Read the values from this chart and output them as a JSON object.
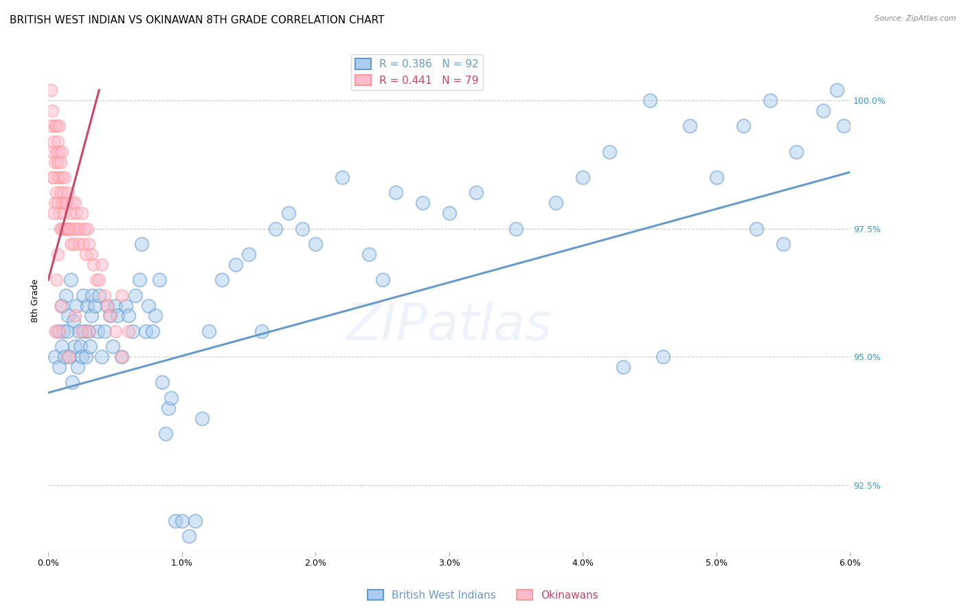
{
  "title": "BRITISH WEST INDIAN VS OKINAWAN 8TH GRADE CORRELATION CHART",
  "source": "Source: ZipAtlas.com",
  "ylabel": "8th Grade",
  "ylabel_right_ticks": [
    92.5,
    95.0,
    97.5,
    100.0
  ],
  "ylabel_right_labels": [
    "92.5%",
    "95.0%",
    "97.5%",
    "100.0%"
  ],
  "x_min": 0.0,
  "x_max": 6.0,
  "y_min": 91.2,
  "y_max": 101.0,
  "blue_R": 0.386,
  "blue_N": 92,
  "pink_R": 0.441,
  "pink_N": 79,
  "blue_color": "#6699CC",
  "pink_color": "#FF9999",
  "pink_line_color": "#CC4466",
  "blue_label": "British West Indians",
  "pink_label": "Okinawans",
  "watermark": "ZIPatlas",
  "blue_scatter_x": [
    0.05,
    0.07,
    0.08,
    0.1,
    0.1,
    0.11,
    0.12,
    0.13,
    0.14,
    0.15,
    0.16,
    0.17,
    0.18,
    0.19,
    0.2,
    0.21,
    0.22,
    0.23,
    0.24,
    0.25,
    0.26,
    0.27,
    0.28,
    0.29,
    0.3,
    0.31,
    0.32,
    0.33,
    0.35,
    0.37,
    0.38,
    0.4,
    0.42,
    0.44,
    0.46,
    0.48,
    0.5,
    0.52,
    0.55,
    0.58,
    0.6,
    0.63,
    0.65,
    0.68,
    0.7,
    0.73,
    0.75,
    0.78,
    0.8,
    0.83,
    0.85,
    0.88,
    0.9,
    0.92,
    0.95,
    1.0,
    1.05,
    1.1,
    1.15,
    1.2,
    1.3,
    1.4,
    1.5,
    1.6,
    1.7,
    1.8,
    1.9,
    2.0,
    2.2,
    2.4,
    2.5,
    2.6,
    2.8,
    3.0,
    3.2,
    3.5,
    3.8,
    4.0,
    4.2,
    4.5,
    4.8,
    5.0,
    5.2,
    5.4,
    5.6,
    5.8,
    5.9,
    5.95,
    5.5,
    5.3,
    4.6,
    4.3
  ],
  "blue_scatter_y": [
    95.0,
    95.5,
    94.8,
    95.2,
    96.0,
    95.5,
    95.0,
    96.2,
    95.5,
    95.8,
    95.0,
    96.5,
    94.5,
    95.7,
    95.2,
    96.0,
    94.8,
    95.5,
    95.2,
    95.0,
    96.2,
    95.5,
    95.0,
    96.0,
    95.5,
    95.2,
    95.8,
    96.2,
    96.0,
    95.5,
    96.2,
    95.0,
    95.5,
    96.0,
    95.8,
    95.2,
    96.0,
    95.8,
    95.0,
    96.0,
    95.8,
    95.5,
    96.2,
    96.5,
    97.2,
    95.5,
    96.0,
    95.5,
    95.8,
    96.5,
    94.5,
    93.5,
    94.0,
    94.2,
    91.8,
    91.8,
    91.5,
    91.8,
    93.8,
    95.5,
    96.5,
    96.8,
    97.0,
    95.5,
    97.5,
    97.8,
    97.5,
    97.2,
    98.5,
    97.0,
    96.5,
    98.2,
    98.0,
    97.8,
    98.2,
    97.5,
    98.0,
    98.5,
    99.0,
    100.0,
    99.5,
    98.5,
    99.5,
    100.0,
    99.0,
    99.8,
    100.2,
    99.5,
    97.2,
    97.5,
    95.0,
    94.8
  ],
  "pink_scatter_x": [
    0.02,
    0.02,
    0.03,
    0.03,
    0.04,
    0.04,
    0.05,
    0.05,
    0.05,
    0.06,
    0.06,
    0.06,
    0.07,
    0.07,
    0.07,
    0.07,
    0.08,
    0.08,
    0.08,
    0.08,
    0.09,
    0.09,
    0.09,
    0.1,
    0.1,
    0.1,
    0.1,
    0.11,
    0.11,
    0.12,
    0.12,
    0.12,
    0.13,
    0.13,
    0.14,
    0.14,
    0.15,
    0.15,
    0.16,
    0.17,
    0.17,
    0.18,
    0.18,
    0.19,
    0.2,
    0.2,
    0.21,
    0.22,
    0.23,
    0.24,
    0.25,
    0.26,
    0.27,
    0.28,
    0.29,
    0.3,
    0.32,
    0.34,
    0.36,
    0.38,
    0.4,
    0.42,
    0.44,
    0.46,
    0.5,
    0.55,
    0.6,
    0.03,
    0.04,
    0.05,
    0.06,
    0.07,
    0.08,
    0.09,
    0.55,
    0.3,
    0.25,
    0.2,
    0.15
  ],
  "pink_scatter_y": [
    99.5,
    100.2,
    99.0,
    99.8,
    98.5,
    99.2,
    98.0,
    98.8,
    99.5,
    98.2,
    99.0,
    99.5,
    98.5,
    99.2,
    98.0,
    98.8,
    97.8,
    98.5,
    99.0,
    99.5,
    97.5,
    98.2,
    98.8,
    97.5,
    98.0,
    98.5,
    99.0,
    97.8,
    98.2,
    97.5,
    98.0,
    98.5,
    97.5,
    98.0,
    97.5,
    98.0,
    97.5,
    98.2,
    97.5,
    97.8,
    97.2,
    97.5,
    98.0,
    97.2,
    97.5,
    98.0,
    97.8,
    97.5,
    97.2,
    97.5,
    97.8,
    97.2,
    97.5,
    97.0,
    97.5,
    97.2,
    97.0,
    96.8,
    96.5,
    96.5,
    96.8,
    96.2,
    96.0,
    95.8,
    95.5,
    95.0,
    95.5,
    98.5,
    97.8,
    95.5,
    96.5,
    97.0,
    95.5,
    96.0,
    96.2,
    95.5,
    95.5,
    95.8,
    95.0
  ],
  "blue_line_x0": 0.0,
  "blue_line_x1": 6.0,
  "blue_line_y0": 94.3,
  "blue_line_y1": 98.6,
  "pink_line_x0": 0.0,
  "pink_line_x1": 0.38,
  "pink_line_y0": 96.5,
  "pink_line_y1": 100.2,
  "grid_color": "#CCCCCC",
  "background_color": "#FFFFFF",
  "title_fontsize": 11,
  "axis_label_fontsize": 9,
  "tick_label_fontsize": 9,
  "legend_fontsize": 11,
  "dot_size_blue": 200,
  "dot_size_pink": 160,
  "dot_alpha": 0.5,
  "dot_linewidth": 1.5
}
